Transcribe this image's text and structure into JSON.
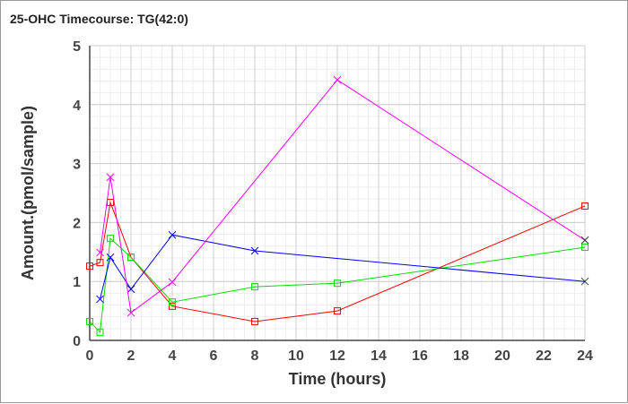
{
  "chart_data": {
    "type": "line",
    "title": "25-OHC Timecourse: TG(42:0)",
    "xlabel": "Time (hours)",
    "ylabel": "Amount.(pmol/sample)",
    "xlim": [
      0,
      24
    ],
    "ylim": [
      0,
      5
    ],
    "xticks": [
      0,
      2,
      4,
      6,
      8,
      10,
      12,
      14,
      16,
      18,
      20,
      22,
      24
    ],
    "yticks": [
      0,
      1,
      2,
      3,
      4,
      5
    ],
    "grid": true,
    "series": [
      {
        "name": "red",
        "color": "#ff0000",
        "marker": "square",
        "x": [
          0,
          0.5,
          1,
          2,
          4,
          8,
          12,
          24
        ],
        "y": [
          1.26,
          1.32,
          2.34,
          1.41,
          0.58,
          0.32,
          0.5,
          2.28
        ]
      },
      {
        "name": "green",
        "color": "#00e000",
        "marker": "square",
        "x": [
          0,
          0.5,
          1,
          2,
          4,
          8,
          12,
          24
        ],
        "y": [
          0.32,
          0.14,
          1.73,
          1.41,
          0.65,
          0.91,
          0.97,
          1.58
        ]
      },
      {
        "name": "blue",
        "color": "#0000ff",
        "marker": "x",
        "x": [
          0.5,
          1,
          2,
          4,
          8,
          24
        ],
        "y": [
          0.7,
          1.41,
          0.87,
          1.79,
          1.52,
          1.0
        ]
      },
      {
        "name": "magenta",
        "color": "#ff00ff",
        "marker": "x",
        "x": [
          0.5,
          1,
          2,
          4,
          12,
          24
        ],
        "y": [
          1.49,
          2.77,
          0.47,
          0.99,
          4.42,
          1.7
        ]
      }
    ]
  }
}
